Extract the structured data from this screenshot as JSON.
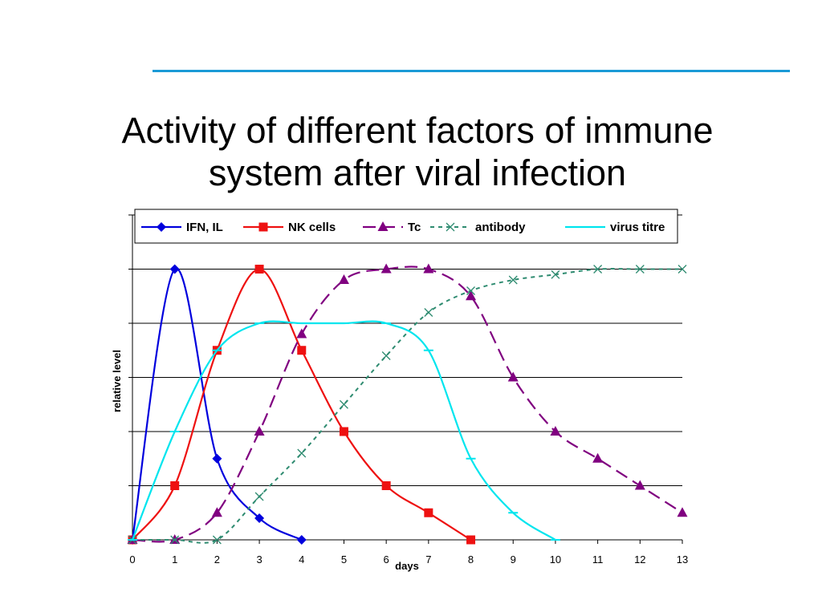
{
  "slide": {
    "title_line1": "Activity of different factors of immune",
    "title_line2": "system after viral infection",
    "accent_color": "#1a9ad6"
  },
  "chart_data": {
    "type": "line",
    "xlabel": "days",
    "ylabel": "relative level",
    "x_ticks": [
      0,
      1,
      2,
      3,
      4,
      5,
      6,
      7,
      8,
      9,
      10,
      11,
      12,
      13
    ],
    "xlim": [
      0,
      13
    ],
    "ylim": [
      0,
      6
    ],
    "y_tick_labels_shown": false,
    "grid": "horizontal",
    "legend_position": "top",
    "series": [
      {
        "name": "IFN, IL",
        "color": "#0000dd",
        "marker": "diamond",
        "dash": "solid",
        "x": [
          0,
          1,
          2,
          3,
          4
        ],
        "values": [
          0,
          5.0,
          1.5,
          0.4,
          0.0
        ]
      },
      {
        "name": "NK cells",
        "color": "#ee1111",
        "marker": "square",
        "dash": "solid",
        "x": [
          0,
          1,
          2,
          3,
          4,
          5,
          6,
          7,
          8
        ],
        "values": [
          0,
          1.0,
          3.5,
          5.0,
          3.5,
          2.0,
          1.0,
          0.5,
          0.0
        ]
      },
      {
        "name": "Tc",
        "color": "#800080",
        "marker": "triangle",
        "dash": "long-dash",
        "x": [
          0,
          1,
          2,
          3,
          4,
          5,
          6,
          7,
          8,
          9,
          10,
          11,
          12,
          13
        ],
        "values": [
          0,
          0,
          0.5,
          2.0,
          3.8,
          4.8,
          5.0,
          5.0,
          4.5,
          3.0,
          2.0,
          1.5,
          1.0,
          0.5
        ]
      },
      {
        "name": "antibody",
        "color": "#2e8b70",
        "marker": "x",
        "dash": "dotted",
        "x": [
          0,
          1,
          2,
          3,
          4,
          5,
          6,
          7,
          8,
          9,
          10,
          11,
          12,
          13
        ],
        "values": [
          0,
          0,
          0,
          0.8,
          1.6,
          2.5,
          3.4,
          4.2,
          4.6,
          4.8,
          4.9,
          5.0,
          5.0,
          5.0
        ]
      },
      {
        "name": "virus titre",
        "color": "#00e5ee",
        "marker": "dash",
        "dash": "solid",
        "x": [
          0,
          1,
          2,
          3,
          4,
          5,
          6,
          7,
          8,
          9,
          10
        ],
        "values": [
          0,
          2.0,
          3.5,
          4.0,
          4.0,
          4.0,
          4.0,
          3.5,
          1.5,
          0.5,
          0.0
        ]
      }
    ]
  }
}
